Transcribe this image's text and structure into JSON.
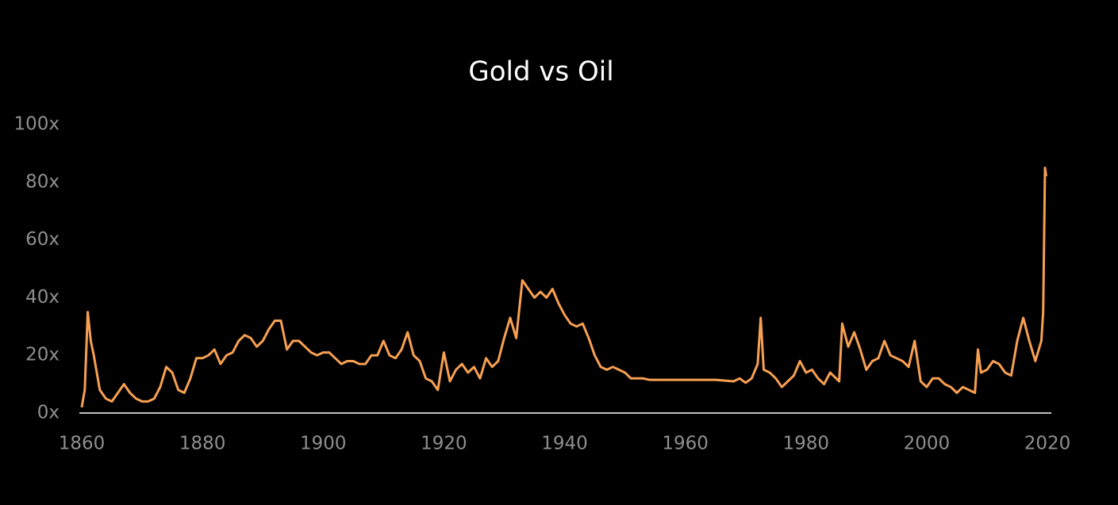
{
  "chart_data": {
    "type": "line",
    "title": "Gold vs Oil",
    "x": [
      1860,
      1860.5,
      1861,
      1861.5,
      1862,
      1863,
      1864,
      1865,
      1866,
      1867,
      1868,
      1869,
      1870,
      1871,
      1872,
      1873,
      1874,
      1875,
      1876,
      1877,
      1878,
      1879,
      1880,
      1881,
      1882,
      1883,
      1884,
      1885,
      1886,
      1887,
      1888,
      1889,
      1890,
      1891,
      1892,
      1893,
      1894,
      1895,
      1896,
      1897,
      1898,
      1899,
      1900,
      1901,
      1902,
      1903,
      1904,
      1905,
      1906,
      1907,
      1908,
      1909,
      1910,
      1911,
      1912,
      1913,
      1914,
      1915,
      1916,
      1917,
      1918,
      1919,
      1920,
      1921,
      1922,
      1923,
      1924,
      1925,
      1926,
      1927,
      1928,
      1929,
      1930,
      1931,
      1932,
      1933,
      1934,
      1935,
      1936,
      1937,
      1938,
      1939,
      1940,
      1941,
      1942,
      1943,
      1944,
      1945,
      1946,
      1947,
      1948,
      1949,
      1950,
      1951,
      1952,
      1953,
      1954,
      1958,
      1962,
      1965,
      1968,
      1969,
      1970,
      1971,
      1972,
      1972.5,
      1973,
      1974,
      1975,
      1976,
      1977,
      1978,
      1979,
      1980,
      1981,
      1982,
      1983,
      1984,
      1985,
      1985.5,
      1986,
      1987,
      1988,
      1989,
      1990,
      1991,
      1992,
      1993,
      1994,
      1995,
      1996,
      1997,
      1998,
      1999,
      2000,
      2001,
      2002,
      2003,
      2004,
      2005,
      2006,
      2007,
      2008,
      2008.5,
      2009,
      2010,
      2011,
      2012,
      2013,
      2014,
      2015,
      2016,
      2017,
      2018,
      2019,
      2019.3,
      2019.6,
      2019.8
    ],
    "series": [
      {
        "name": "Gold vs Oil",
        "color": "#f7a052",
        "values": [
          2,
          8,
          35,
          25,
          20,
          8,
          5,
          4,
          7,
          10,
          7,
          5,
          4,
          4,
          5,
          9,
          16,
          14,
          8,
          7,
          12,
          19,
          19,
          20,
          22,
          17,
          20,
          21,
          25,
          27,
          26,
          23,
          25,
          29,
          32,
          32,
          22,
          25,
          25,
          23,
          21,
          20,
          21,
          21,
          19,
          17,
          18,
          18,
          17,
          17,
          20,
          20,
          25,
          20,
          19,
          22,
          28,
          20,
          18,
          12,
          11,
          8,
          21,
          11,
          15,
          17,
          14,
          16,
          12,
          19,
          16,
          18,
          26,
          33,
          26,
          46,
          43,
          40,
          42,
          40,
          43,
          38,
          34,
          31,
          30,
          31,
          26,
          20,
          16,
          15,
          16,
          15,
          14,
          12,
          12,
          12,
          11.5,
          11.5,
          11.5,
          11.5,
          11,
          12,
          10.5,
          12,
          17,
          33,
          15,
          14,
          12,
          9,
          11,
          13,
          18,
          14,
          15,
          12,
          10,
          14,
          12,
          11,
          31,
          23,
          28,
          22,
          15,
          18,
          19,
          25,
          20,
          19,
          18,
          16,
          25,
          11,
          9,
          12,
          12,
          10,
          9,
          7,
          9,
          8,
          7,
          22,
          14,
          15,
          18,
          17,
          14,
          13,
          25,
          33,
          25,
          18,
          25,
          35,
          85,
          82
        ]
      }
    ],
    "xlim": [
      1860,
      2020
    ],
    "ylim": [
      0,
      100
    ],
    "xticks": [
      1860,
      1880,
      1900,
      1920,
      1940,
      1960,
      1980,
      2000,
      2020
    ],
    "yticks": [
      {
        "value": 0,
        "label": "0x"
      },
      {
        "value": 20,
        "label": "20x"
      },
      {
        "value": 40,
        "label": "40x"
      },
      {
        "value": 60,
        "label": "60x"
      },
      {
        "value": 80,
        "label": "80x"
      },
      {
        "value": 100,
        "label": "100x"
      }
    ]
  }
}
